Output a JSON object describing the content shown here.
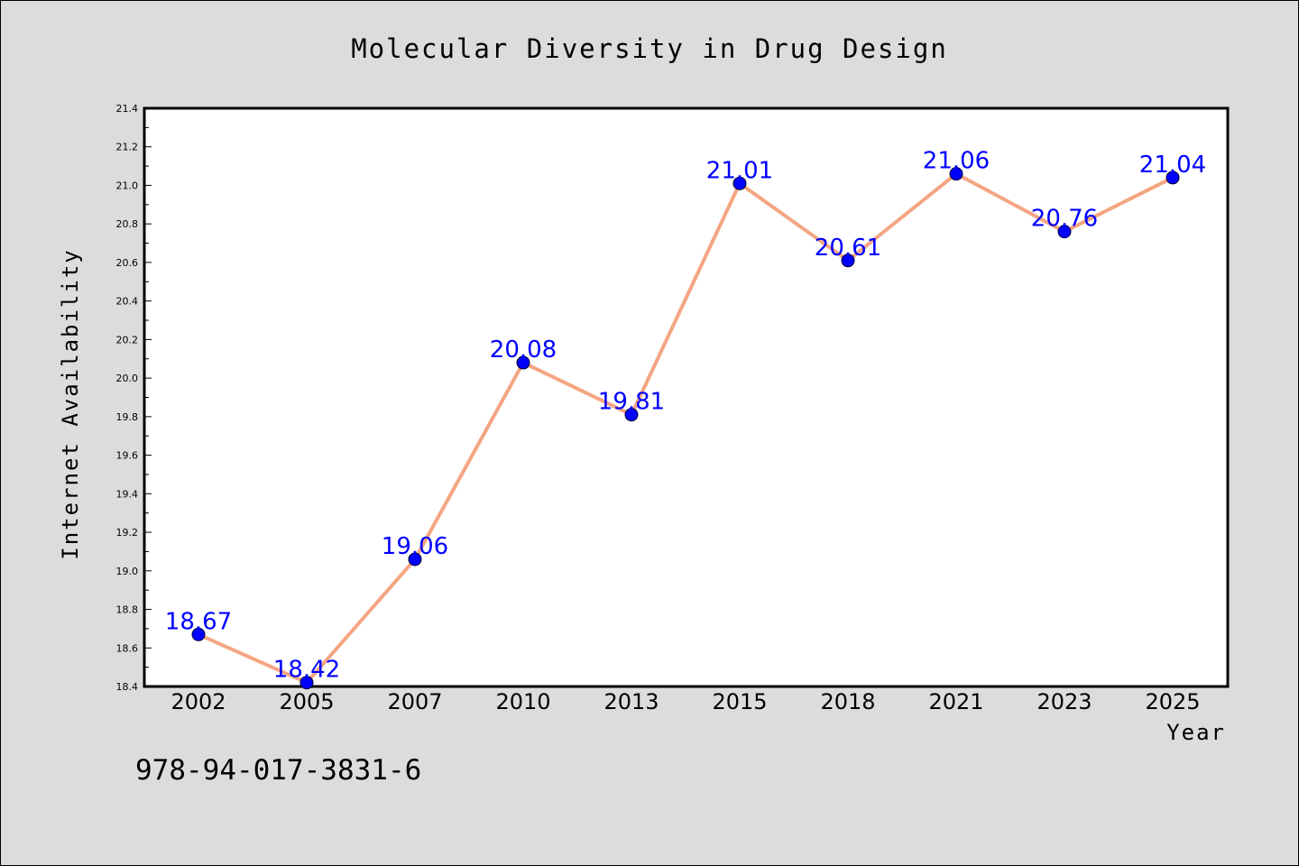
{
  "footer": {
    "isbn": "978-94-017-3831-6"
  },
  "colors": {
    "line": "#f4a582",
    "marker": "#0000ff",
    "label": "#0000ff",
    "background": "#dcdcdc",
    "plot_background": "#ffffff"
  },
  "chart_data": {
    "type": "line",
    "title": "Molecular Diversity in Drug Design",
    "xlabel": "Year",
    "ylabel": "Internet Availability",
    "categories": [
      "2002",
      "2005",
      "2007",
      "2010",
      "2013",
      "2015",
      "2018",
      "2021",
      "2023",
      "2025"
    ],
    "series": [
      {
        "values": [
          18.67,
          18.42,
          19.06,
          20.08,
          19.81,
          21.01,
          20.61,
          21.06,
          20.76,
          21.04
        ]
      }
    ],
    "data_labels": [
      "18.67",
      "18.42",
      "19.06",
      "20.08",
      "19.81",
      "21.01",
      "20.61",
      "21.06",
      "20.76",
      "21.04"
    ],
    "ylim": [
      18.4,
      21.4
    ],
    "yticks": [
      "18.4",
      "18.6",
      "18.8",
      "19.0",
      "19.2",
      "19.4",
      "19.6",
      "19.8",
      "20.0",
      "20.2",
      "20.4",
      "20.6",
      "20.8",
      "21.0",
      "21.2",
      "21.4"
    ],
    "grid": false,
    "legend": "none"
  }
}
